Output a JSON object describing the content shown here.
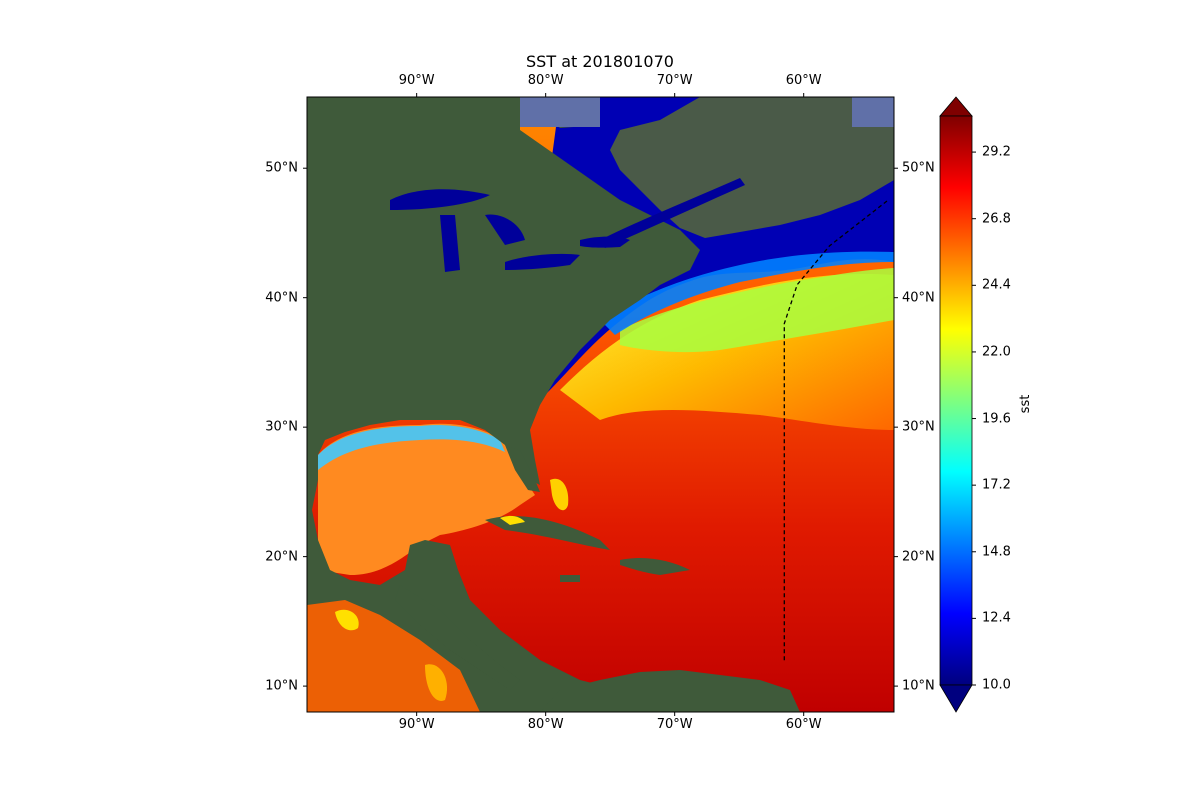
{
  "title": "SST at 201801070",
  "map": {
    "lon_range": [
      -98.5,
      -53
    ],
    "lat_range": [
      8,
      55.5
    ],
    "x_ticks": [
      {
        "lon": -90,
        "label": "90°W"
      },
      {
        "lon": -80,
        "label": "80°W"
      },
      {
        "lon": -70,
        "label": "70°W"
      },
      {
        "lon": -60,
        "label": "60°W"
      }
    ],
    "y_ticks": [
      {
        "lat": 10,
        "label": "10°N"
      },
      {
        "lat": 20,
        "label": "20°N"
      },
      {
        "lat": 30,
        "label": "30°N"
      },
      {
        "lat": 40,
        "label": "40°N"
      },
      {
        "lat": 50,
        "label": "50°N"
      }
    ],
    "colors": {
      "land": "#3f5a3a",
      "land_north": "#4a5a48",
      "cold": "#00008b",
      "warm": "#d40000",
      "hot": "#b40000",
      "track": "#000000"
    },
    "track_path": [
      [
        -61.5,
        12
      ],
      [
        -61.5,
        38
      ],
      [
        -60.5,
        41
      ],
      [
        -58,
        44
      ],
      [
        -53.5,
        47.5
      ]
    ]
  },
  "colorbar": {
    "label": "sst",
    "range": [
      10,
      30.5
    ],
    "ticks": [
      {
        "value": 10.0,
        "label": "10.0"
      },
      {
        "value": 12.4,
        "label": "12.4"
      },
      {
        "value": 14.8,
        "label": "14.8"
      },
      {
        "value": 17.2,
        "label": "17.2"
      },
      {
        "value": 19.6,
        "label": "19.6"
      },
      {
        "value": 22.0,
        "label": "22.0"
      },
      {
        "value": 24.4,
        "label": "24.4"
      },
      {
        "value": 26.8,
        "label": "26.8"
      },
      {
        "value": 29.2,
        "label": "29.2"
      }
    ],
    "stops": [
      "#00007f",
      "#0000ff",
      "#007fff",
      "#00ffff",
      "#7fff7f",
      "#ffff00",
      "#ff7f00",
      "#ff0000",
      "#7f0000"
    ]
  }
}
